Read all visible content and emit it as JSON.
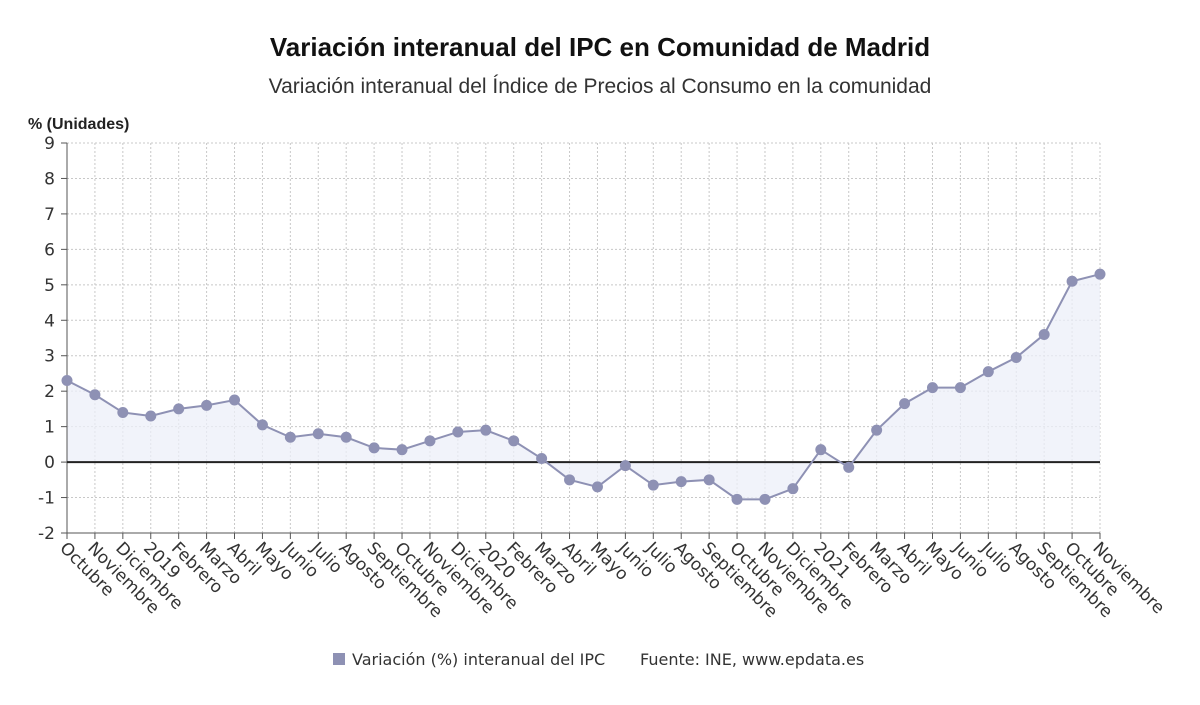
{
  "colors": {
    "series": "#8e91b4",
    "area": "#eceff8",
    "grid": "#c8c8c8",
    "zero_line": "#222222",
    "axis": "#555555"
  },
  "chart_data": {
    "type": "line",
    "title": "Variación interanual del IPC en Comunidad de Madrid",
    "subtitle": "Variación interanual del Índice de Precios al Consumo en la comunidad",
    "ylabel": "% (Unidades)",
    "ylim": [
      -2,
      9
    ],
    "yticks": [
      -2,
      -1,
      0,
      1,
      2,
      3,
      4,
      5,
      6,
      7,
      8,
      9
    ],
    "grid": true,
    "legend_placement": "bottom",
    "categories": [
      "Octubre",
      "Noviembre",
      "Diciembre",
      "2019",
      "Febrero",
      "Marzo",
      "Abril",
      "Mayo",
      "Junio",
      "Julio",
      "Agosto",
      "Septiembre",
      "Octubre",
      "Noviembre",
      "Diciembre",
      "2020",
      "Febrero",
      "Marzo",
      "Abril",
      "Mayo",
      "Junio",
      "Julio",
      "Agosto",
      "Septiembre",
      "Octubre",
      "Noviembre",
      "Diciembre",
      "2021",
      "Febrero",
      "Marzo",
      "Abril",
      "Mayo",
      "Junio",
      "Julio",
      "Agosto",
      "Septiembre",
      "Octubre",
      "Noviembre"
    ],
    "series": [
      {
        "name": "Variación (%) interanual del IPC",
        "values": [
          2.3,
          1.9,
          1.4,
          1.3,
          1.5,
          1.6,
          1.75,
          1.05,
          0.7,
          0.8,
          0.7,
          0.4,
          0.35,
          0.6,
          0.85,
          0.9,
          0.6,
          0.1,
          -0.5,
          -0.7,
          -0.1,
          -0.65,
          -0.55,
          -0.5,
          -1.05,
          -1.05,
          -0.75,
          0.35,
          -0.15,
          0.9,
          1.65,
          2.1,
          2.1,
          2.55,
          2.95,
          3.6,
          5.1,
          5.3
        ]
      }
    ]
  },
  "legend": {
    "series_label": "Variación (%) interanual del IPC",
    "source": "Fuente: INE, www.epdata.es"
  }
}
